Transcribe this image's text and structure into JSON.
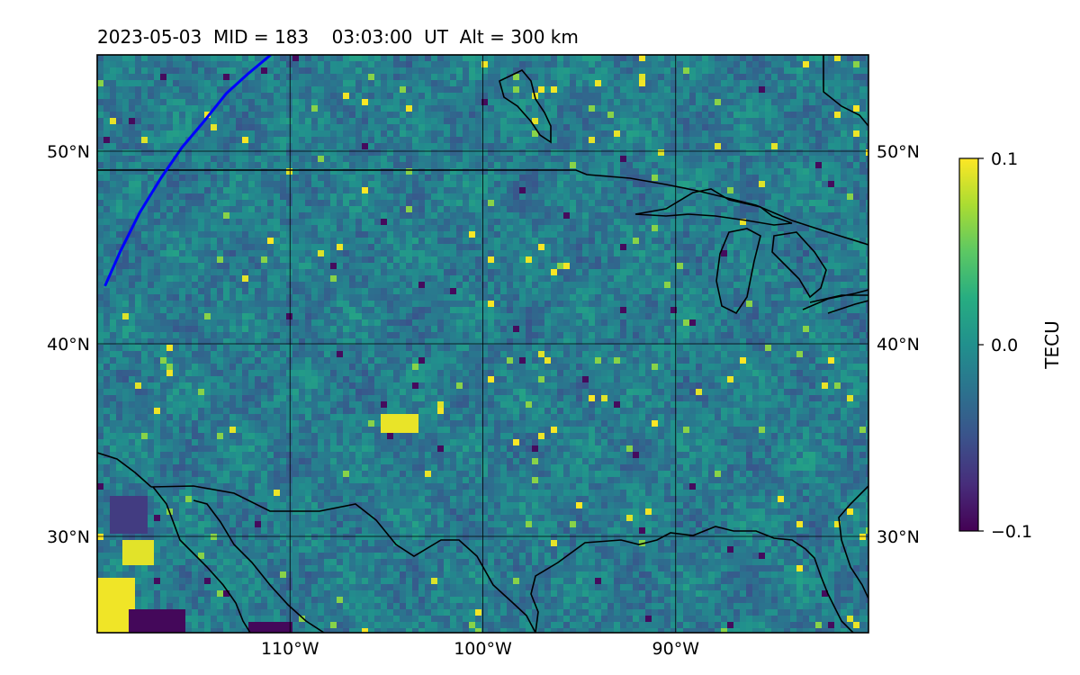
{
  "chart_data": {
    "type": "heatmap",
    "title": "2023-05-03  MID = 183    03:03:00  UT  Alt = 300 km",
    "projection": "lat-lon map",
    "lon_range": [
      -120,
      -80
    ],
    "lat_range": [
      25,
      55
    ],
    "lon_ticks": [
      -110,
      -100,
      -90
    ],
    "lon_tick_labels": [
      "110°W",
      "100°W",
      "90°W"
    ],
    "lat_ticks": [
      30,
      40,
      50
    ],
    "lat_tick_labels": [
      "30°N",
      "40°N",
      "50°N"
    ],
    "grid": true,
    "colormap": "viridis",
    "colorbar": {
      "label": "TECU",
      "range": [
        -0.1,
        0.1
      ],
      "ticks": [
        0.1,
        0.0,
        -0.1
      ],
      "tick_labels": [
        "0.1",
        "0.0",
        "−0.1"
      ]
    },
    "terminator_line": {
      "color": "#0000ff",
      "lon": [
        -111.0,
        -112.2,
        -113.3,
        -114.5,
        -115.6,
        -116.7,
        -117.8,
        -118.8,
        -119.6
      ],
      "lat": [
        55.0,
        54.0,
        53.0,
        51.5,
        50.2,
        48.6,
        46.8,
        44.8,
        43.0
      ]
    },
    "field_summary": "mostly near 0.0 TECU with small-scale fluctuations; strong positive and negative patches near 27N 118W–120W"
  }
}
